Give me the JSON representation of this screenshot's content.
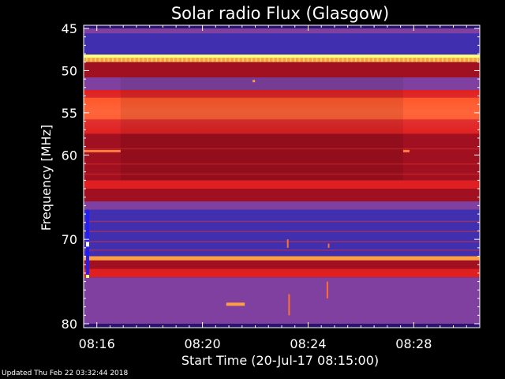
{
  "chart_data": {
    "type": "heatmap",
    "title": "Solar radio Flux (Glasgow)",
    "ylabel": "Frequency [MHz]",
    "xlabel": "Start Time (20-Jul-17 08:15:00)",
    "y_ticks": [
      "45",
      "50",
      "55",
      "60",
      "70",
      "80"
    ],
    "y_tick_values": [
      45,
      50,
      55,
      60,
      70,
      80
    ],
    "x_ticks": [
      "08:16",
      "08:20",
      "08:24",
      "08:28"
    ],
    "x_tick_values_min": [
      1,
      5,
      9,
      13
    ],
    "ylim": [
      45,
      80
    ],
    "xlim_min": [
      0.5,
      15.5
    ],
    "colormap": [
      "#1a0a6e",
      "#4030b0",
      "#8040a0",
      "#a01020",
      "#e02020",
      "#ff5020",
      "#ffa040",
      "#ffff80"
    ],
    "bands": [
      {
        "f0": 45.0,
        "f1": 45.6,
        "level": 2
      },
      {
        "f0": 45.6,
        "f1": 48.1,
        "level": 1
      },
      {
        "f0": 48.1,
        "f1": 48.5,
        "level": 7
      },
      {
        "f0": 48.5,
        "f1": 49.0,
        "level": 6
      },
      {
        "f0": 49.0,
        "f1": 50.8,
        "level": 3
      },
      {
        "f0": 50.8,
        "f1": 52.3,
        "level": 2
      },
      {
        "f0": 52.3,
        "f1": 53.2,
        "level": 4
      },
      {
        "f0": 53.2,
        "f1": 55.8,
        "level": 5
      },
      {
        "f0": 55.8,
        "f1": 57.5,
        "level": 4
      },
      {
        "f0": 57.5,
        "f1": 63.0,
        "level": 3
      },
      {
        "f0": 63.0,
        "f1": 64.0,
        "level": 4
      },
      {
        "f0": 64.0,
        "f1": 65.5,
        "level": 3
      },
      {
        "f0": 65.5,
        "f1": 66.5,
        "level": 2
      },
      {
        "f0": 66.5,
        "f1": 72.0,
        "level": 1
      },
      {
        "f0": 72.0,
        "f1": 72.5,
        "level": 6
      },
      {
        "f0": 72.5,
        "f1": 73.5,
        "level": 3
      },
      {
        "f0": 73.5,
        "f1": 74.5,
        "level": 4
      },
      {
        "f0": 74.5,
        "f1": 80.0,
        "level": 2
      }
    ]
  },
  "footer": {
    "updated": "Updated Thu Feb 22 03:32:44 2018"
  }
}
